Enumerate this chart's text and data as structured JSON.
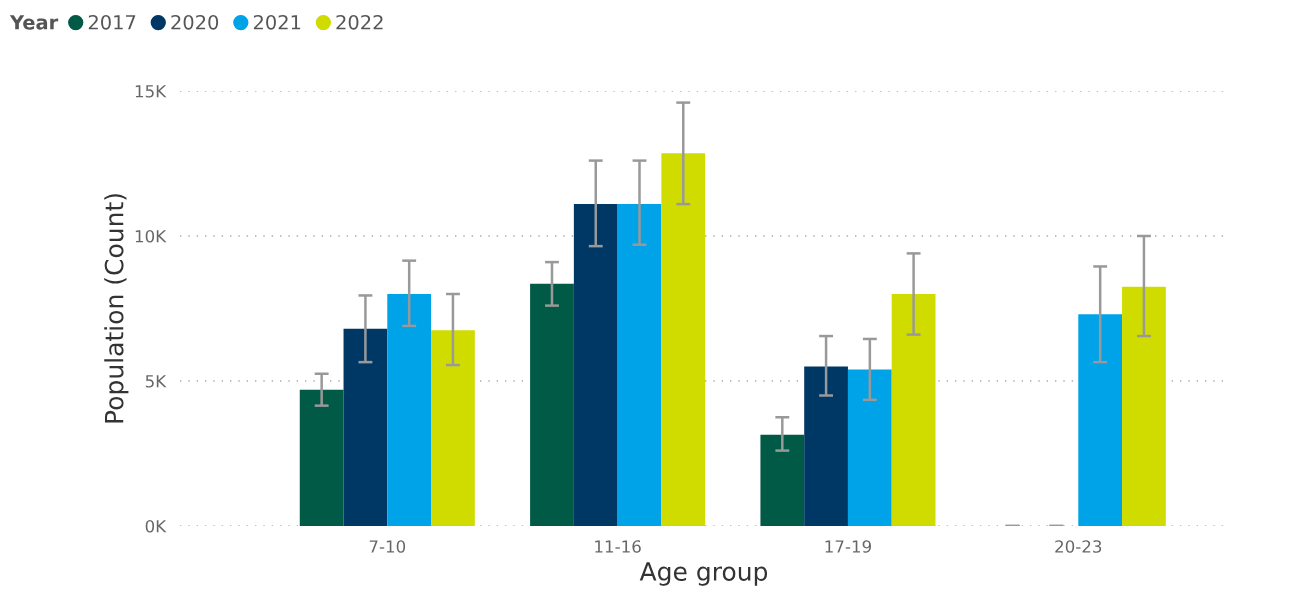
{
  "chart_data": {
    "type": "bar",
    "xlabel": "Age group",
    "ylabel": "Population (Count)",
    "legend_title": "Year",
    "categories": [
      "7-10",
      "11-16",
      "17-19",
      "20-23"
    ],
    "series": [
      {
        "name": "2017",
        "color": "#005a46",
        "values": [
          4700,
          8350,
          3150,
          0
        ],
        "errors": [
          [
            4150,
            5250
          ],
          [
            7600,
            9100
          ],
          [
            2600,
            3750
          ],
          [
            0,
            0
          ]
        ]
      },
      {
        "name": "2020",
        "color": "#003865",
        "values": [
          6800,
          11100,
          5500,
          0
        ],
        "errors": [
          [
            5650,
            7950
          ],
          [
            9650,
            12600
          ],
          [
            4500,
            6550
          ],
          [
            0,
            0
          ]
        ]
      },
      {
        "name": "2021",
        "color": "#00a3e8",
        "values": [
          8000,
          11100,
          5400,
          7300
        ],
        "errors": [
          [
            6900,
            9150
          ],
          [
            9700,
            12600
          ],
          [
            4350,
            6450
          ],
          [
            5650,
            8950
          ]
        ]
      },
      {
        "name": "2022",
        "color": "#d0dc00",
        "values": [
          6750,
          12850,
          8000,
          8250
        ],
        "errors": [
          [
            5550,
            8000
          ],
          [
            11100,
            14600
          ],
          [
            6600,
            9400
          ],
          [
            6550,
            10000
          ]
        ]
      }
    ],
    "ylim": [
      0,
      15000
    ],
    "yticks": [
      {
        "value": 0,
        "label": "0K"
      },
      {
        "value": 5000,
        "label": "5K"
      },
      {
        "value": 10000,
        "label": "10K"
      },
      {
        "value": 15000,
        "label": "15K"
      }
    ],
    "grid": "y",
    "legend": "top left"
  }
}
